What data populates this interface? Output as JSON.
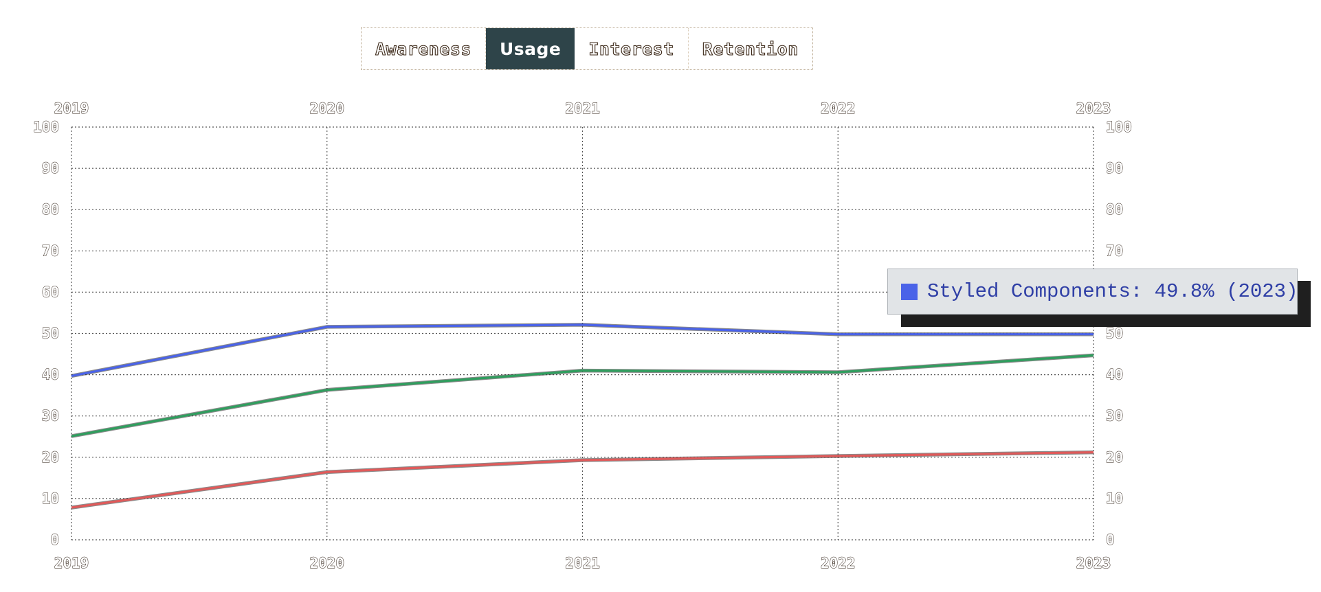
{
  "tabs": [
    {
      "label": "Awareness",
      "active": false
    },
    {
      "label": "Usage",
      "active": true
    },
    {
      "label": "Interest",
      "active": false
    },
    {
      "label": "Retention",
      "active": false
    }
  ],
  "tooltip": {
    "text": "Styled Components: 49.8% (2023)",
    "swatch_color": "#4a63e8"
  },
  "chart_data": {
    "type": "line",
    "x": [
      "2019",
      "2020",
      "2021",
      "2022",
      "2023"
    ],
    "ylim": [
      0,
      100
    ],
    "yticks": [
      0,
      10,
      20,
      30,
      40,
      50,
      60,
      70,
      80,
      90,
      100
    ],
    "grid": true,
    "series": [
      {
        "name": "Styled Components",
        "color": "#4a63e8",
        "values": [
          39.7,
          51.6,
          52.1,
          49.8,
          49.8
        ]
      },
      {
        "color": "#2f9e5e",
        "values": [
          25.1,
          36.3,
          41.0,
          40.6,
          44.7
        ]
      },
      {
        "color": "#e05a5a",
        "values": [
          7.8,
          16.4,
          19.3,
          20.3,
          21.2
        ]
      }
    ]
  }
}
